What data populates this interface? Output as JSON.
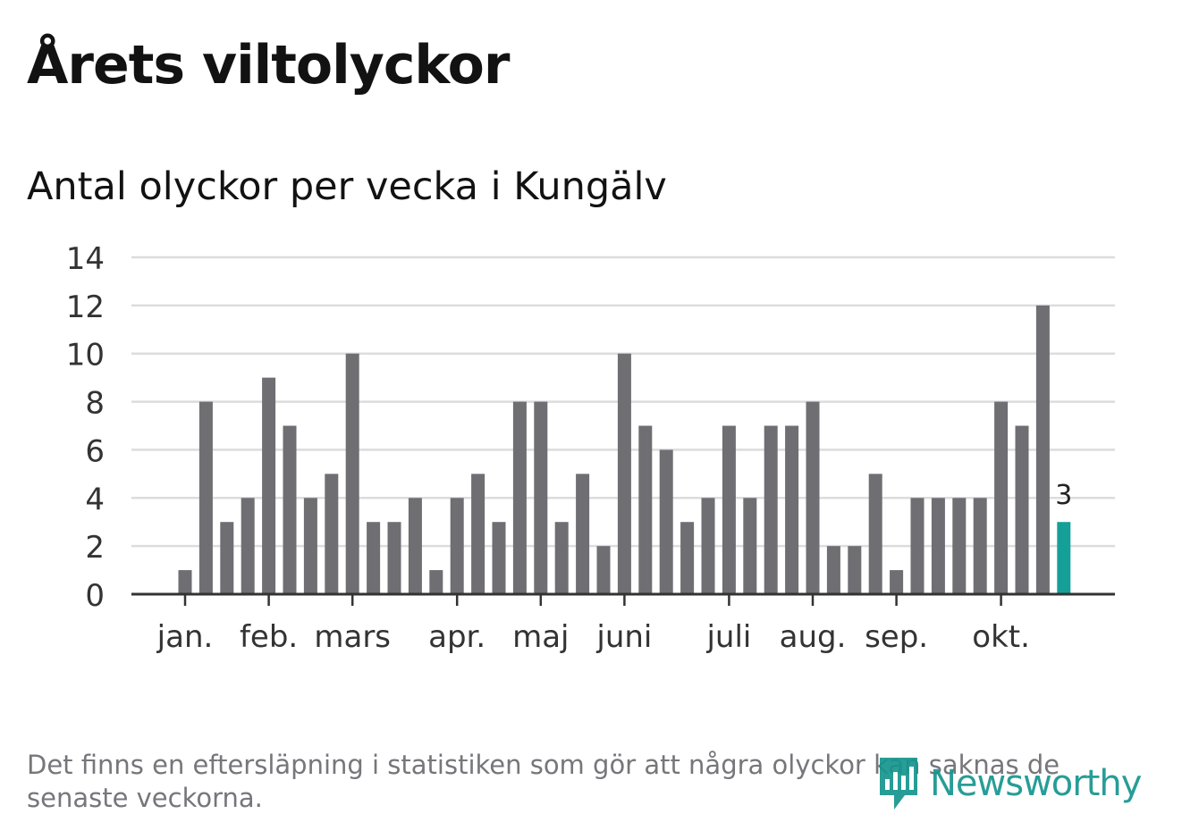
{
  "title": "Årets viltolyckor",
  "subtitle": "Antal olyckor per vecka i Kungälv",
  "footer_note": "Det finns en eftersläpning i statistiken som gör att några olyckor kan saknas de senaste veckorna.",
  "logo": {
    "text": "Newsworthy",
    "icon": "newsworthy-bar-chart-icon",
    "color": "#15958e"
  },
  "chart_data": {
    "type": "bar",
    "title": "Antal olyckor per vecka i Kungälv",
    "xlabel": "",
    "ylabel": "",
    "ylim": [
      0,
      14
    ],
    "yticks": [
      0,
      2,
      4,
      6,
      8,
      10,
      12,
      14
    ],
    "grid": true,
    "values": [
      1,
      8,
      3,
      4,
      9,
      7,
      4,
      5,
      10,
      3,
      3,
      4,
      1,
      4,
      5,
      3,
      8,
      8,
      3,
      5,
      2,
      10,
      7,
      6,
      3,
      4,
      7,
      4,
      7,
      7,
      8,
      2,
      2,
      5,
      1,
      4,
      4,
      4,
      4,
      8,
      7,
      12,
      3
    ],
    "month_labels": [
      {
        "label": "jan.",
        "bar_index": 0
      },
      {
        "label": "feb.",
        "bar_index": 4
      },
      {
        "label": "mars",
        "bar_index": 8
      },
      {
        "label": "apr.",
        "bar_index": 13
      },
      {
        "label": "maj",
        "bar_index": 17
      },
      {
        "label": "juni",
        "bar_index": 21
      },
      {
        "label": "juli",
        "bar_index": 26
      },
      {
        "label": "aug.",
        "bar_index": 30
      },
      {
        "label": "sep.",
        "bar_index": 34
      },
      {
        "label": "okt.",
        "bar_index": 39
      }
    ],
    "highlight_label": "3",
    "bar_color": "#6e6e73",
    "highlight_color": "#14a098"
  }
}
